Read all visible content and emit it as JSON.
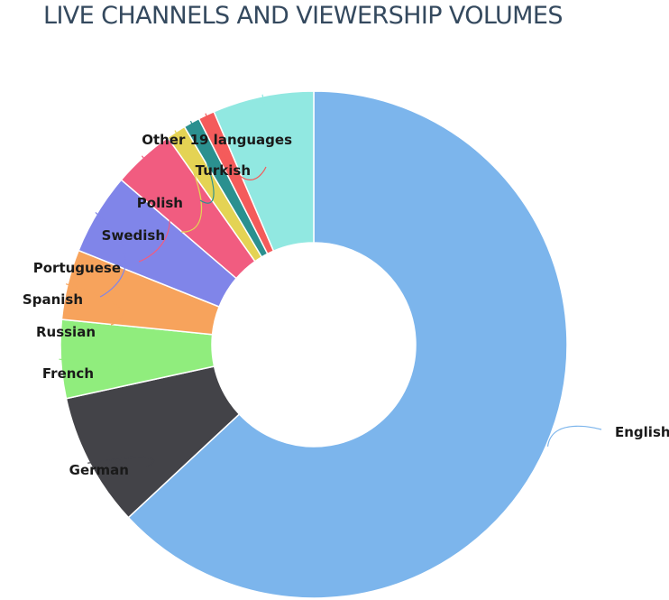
{
  "chart_data": {
    "type": "pie",
    "title": "LIVE CHANNELS AND VIEWERSHIP VOLUMES",
    "categories": [
      "English",
      "German",
      "French",
      "Russian",
      "Spanish",
      "Portuguese",
      "Swedish",
      "Polish",
      "Turkish",
      "Other 19 languages"
    ],
    "values": [
      60.6,
      8.2,
      4.8,
      4.3,
      5.0,
      3.8,
      1.2,
      1.0,
      1.0,
      6.2
    ],
    "colors": [
      "#7cb5ec",
      "#434348",
      "#90ed7d",
      "#f7a35c",
      "#8085e9",
      "#f15c80",
      "#e4d354",
      "#2b908f",
      "#f45b5b",
      "#91e8e1"
    ],
    "series": [
      {
        "values": [
          60.6,
          8.2,
          4.8,
          4.3,
          5.0,
          3.8,
          1.2,
          1.0,
          1.0,
          6.2
        ]
      }
    ],
    "legend": "none"
  }
}
